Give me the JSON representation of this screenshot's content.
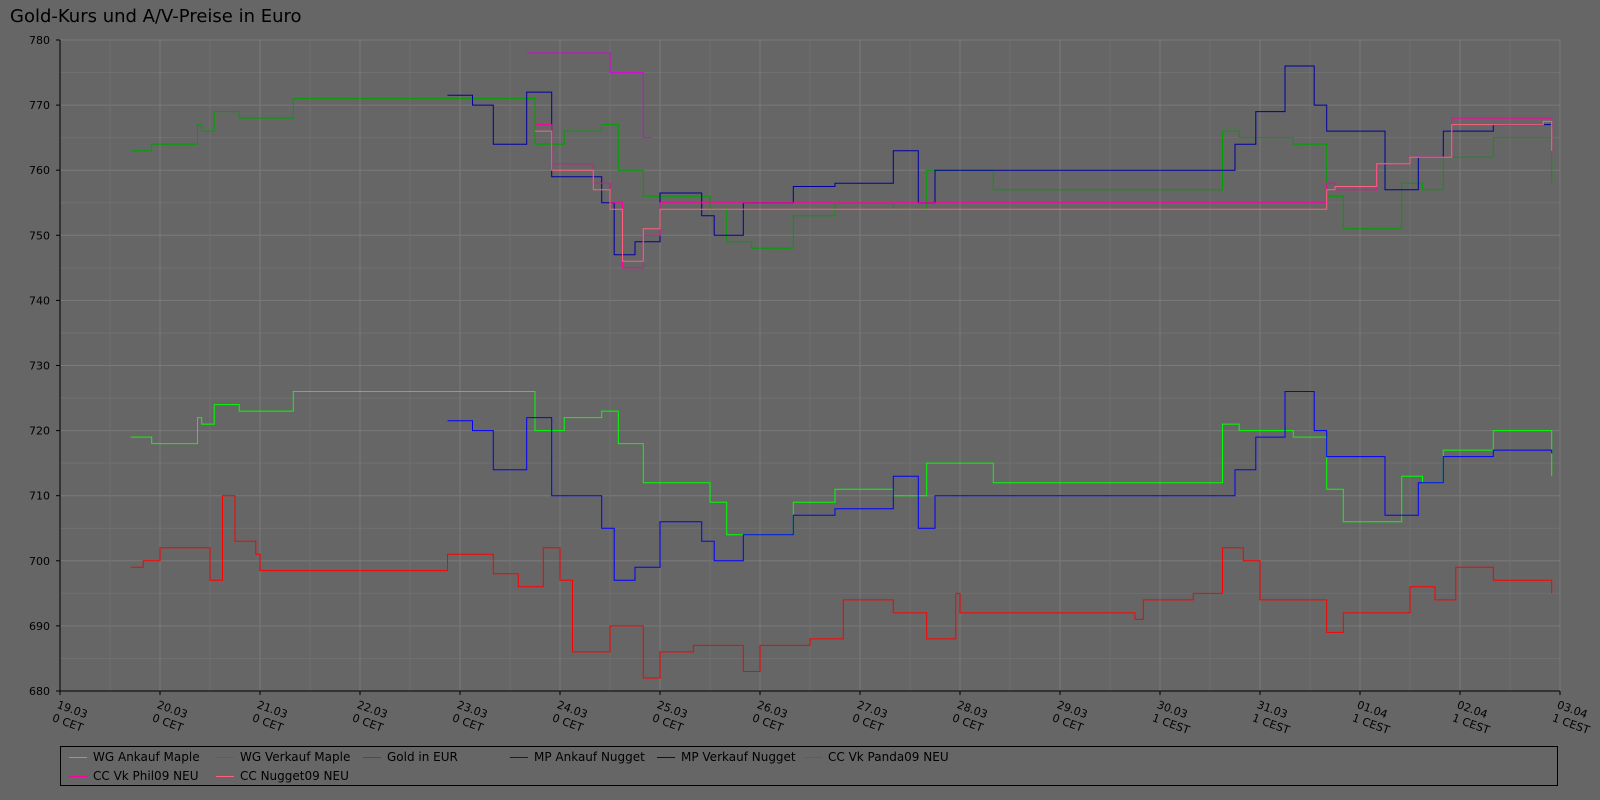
{
  "chart_data": {
    "type": "line",
    "title": "Gold-Kurs und A/V-Preise in Euro",
    "xlabel": "",
    "ylabel": "",
    "ylim": [
      680,
      780
    ],
    "yticks": [
      680,
      690,
      700,
      710,
      720,
      730,
      740,
      750,
      760,
      770,
      780
    ],
    "xlim": [
      "2009-03-19",
      "2009-04-03"
    ],
    "xticks": [
      {
        "x": "2009-03-19",
        "line1": "19.03",
        "line2": "0 CET"
      },
      {
        "x": "2009-03-20",
        "line1": "20.03",
        "line2": "0 CET"
      },
      {
        "x": "2009-03-21",
        "line1": "21.03",
        "line2": "0 CET"
      },
      {
        "x": "2009-03-22",
        "line1": "22.03",
        "line2": "0 CET"
      },
      {
        "x": "2009-03-23",
        "line1": "23.03",
        "line2": "0 CET"
      },
      {
        "x": "2009-03-24",
        "line1": "24.03",
        "line2": "0 CET"
      },
      {
        "x": "2009-03-25",
        "line1": "25.03",
        "line2": "0 CET"
      },
      {
        "x": "2009-03-26",
        "line1": "26.03",
        "line2": "0 CET"
      },
      {
        "x": "2009-03-27",
        "line1": "27.03",
        "line2": "0 CET"
      },
      {
        "x": "2009-03-28",
        "line1": "28.03",
        "line2": "0 CET"
      },
      {
        "x": "2009-03-29",
        "line1": "29.03",
        "line2": "0 CET"
      },
      {
        "x": "2009-03-30",
        "line1": "30.03",
        "line2": "1 CEST"
      },
      {
        "x": "2009-03-31",
        "line1": "31.03",
        "line2": "1 CEST"
      },
      {
        "x": "2009-04-01",
        "line1": "01.04",
        "line2": "1 CEST"
      },
      {
        "x": "2009-04-02",
        "line1": "02.04",
        "line2": "1 CEST"
      },
      {
        "x": "2009-04-03",
        "line1": "03.04",
        "line2": "1 CEST"
      }
    ],
    "grid": true,
    "legend_position": "bottom",
    "series": [
      {
        "name": "WG Ankauf Maple",
        "color": "#00ff00",
        "x": [
          "2009-03-19T17:00",
          "2009-03-19T22:00",
          "2009-03-20T09:00",
          "2009-03-20T10:00",
          "2009-03-20T13:00",
          "2009-03-20T19:00",
          "2009-03-21T08:00",
          "2009-03-23T08:00",
          "2009-03-23T12:00",
          "2009-03-23T18:00",
          "2009-03-24T01:00",
          "2009-03-24T10:00",
          "2009-03-24T14:00",
          "2009-03-24T20:00",
          "2009-03-25T12:00",
          "2009-03-25T16:00",
          "2009-03-25T22:00",
          "2009-03-26T08:00",
          "2009-03-26T18:00",
          "2009-03-27T08:00",
          "2009-03-27T16:00",
          "2009-03-28T08:00",
          "2009-03-29T20:00",
          "2009-03-30T08:00",
          "2009-03-30T15:00",
          "2009-03-30T19:00",
          "2009-03-31T08:00",
          "2009-03-31T16:00",
          "2009-03-31T20:00",
          "2009-04-01T10:00",
          "2009-04-01T15:00",
          "2009-04-01T20:00",
          "2009-04-02T08:00",
          "2009-04-02T22:00"
        ],
        "y": [
          719,
          718,
          722,
          721,
          724,
          723,
          726,
          726,
          726,
          720,
          722,
          723,
          718,
          712,
          709,
          704,
          704,
          709,
          711,
          710,
          715,
          712,
          712,
          712,
          721,
          720,
          719,
          711,
          706,
          713,
          712,
          717,
          720,
          713
        ]
      },
      {
        "name": "WG Verkauf Maple",
        "color": "#00a000",
        "x": [
          "2009-03-19T17:00",
          "2009-03-19T22:00",
          "2009-03-20T09:00",
          "2009-03-20T10:00",
          "2009-03-20T13:00",
          "2009-03-20T19:00",
          "2009-03-21T08:00",
          "2009-03-23T08:00",
          "2009-03-23T12:00",
          "2009-03-23T18:00",
          "2009-03-24T01:00",
          "2009-03-24T10:00",
          "2009-03-24T14:00",
          "2009-03-24T20:00",
          "2009-03-25T12:00",
          "2009-03-25T16:00",
          "2009-03-25T22:00",
          "2009-03-26T08:00",
          "2009-03-26T18:00",
          "2009-03-27T08:00",
          "2009-03-27T16:00",
          "2009-03-28T08:00",
          "2009-03-29T20:00",
          "2009-03-30T08:00",
          "2009-03-30T15:00",
          "2009-03-30T19:00",
          "2009-03-31T08:00",
          "2009-03-31T16:00",
          "2009-03-31T20:00",
          "2009-04-01T10:00",
          "2009-04-01T15:00",
          "2009-04-01T20:00",
          "2009-04-02T08:00",
          "2009-04-02T22:00"
        ],
        "y": [
          763,
          764,
          767,
          766,
          769,
          768,
          771,
          771,
          771,
          764,
          766,
          767,
          760,
          756,
          754,
          749,
          748,
          753,
          755,
          754,
          760,
          757,
          757,
          757,
          766,
          765,
          764,
          756,
          751,
          758,
          757,
          762,
          765,
          758
        ]
      },
      {
        "name": "Gold in EUR",
        "color": "#ff0000",
        "x": [
          "2009-03-19T17:00",
          "2009-03-19T20:00",
          "2009-03-20T00:00",
          "2009-03-20T12:00",
          "2009-03-20T15:00",
          "2009-03-20T18:00",
          "2009-03-20T23:00",
          "2009-03-21T00:00",
          "2009-03-22T20:00",
          "2009-03-22T21:00",
          "2009-03-23T00:00",
          "2009-03-23T08:00",
          "2009-03-23T14:00",
          "2009-03-23T20:00",
          "2009-03-24T00:00",
          "2009-03-24T03:00",
          "2009-03-24T12:00",
          "2009-03-24T20:00",
          "2009-03-25T00:00",
          "2009-03-25T08:00",
          "2009-03-25T15:00",
          "2009-03-25T20:00",
          "2009-03-26T00:00",
          "2009-03-26T12:00",
          "2009-03-26T20:00",
          "2009-03-27T08:00",
          "2009-03-27T16:00",
          "2009-03-27T23:00",
          "2009-03-28T00:00",
          "2009-03-29T18:00",
          "2009-03-29T20:00",
          "2009-03-30T08:00",
          "2009-03-30T15:00",
          "2009-03-30T20:00",
          "2009-03-31T00:00",
          "2009-03-31T08:00",
          "2009-03-31T16:00",
          "2009-03-31T20:00",
          "2009-04-01T12:00",
          "2009-04-01T18:00",
          "2009-04-01T23:00",
          "2009-04-02T08:00",
          "2009-04-02T22:00"
        ],
        "y": [
          699,
          700,
          702,
          697,
          710,
          703,
          701,
          698.5,
          698.5,
          701,
          701,
          698,
          696,
          702,
          697,
          686,
          690,
          682,
          686,
          687,
          687,
          683,
          687,
          688,
          694,
          692,
          688,
          695,
          692,
          691,
          694,
          695,
          702,
          700,
          694,
          694,
          689,
          692,
          696,
          694,
          699,
          697,
          695
        ]
      },
      {
        "name": "MP Ankauf Nugget",
        "color": "#0000ff",
        "x": [
          "2009-03-22T21:00",
          "2009-03-23T03:00",
          "2009-03-23T08:00",
          "2009-03-23T16:00",
          "2009-03-23T22:00",
          "2009-03-24T10:00",
          "2009-03-24T13:00",
          "2009-03-24T18:00",
          "2009-03-25T00:00",
          "2009-03-25T10:00",
          "2009-03-25T13:00",
          "2009-03-25T20:00",
          "2009-03-26T08:00",
          "2009-03-26T18:00",
          "2009-03-27T08:00",
          "2009-03-27T14:00",
          "2009-03-27T18:00",
          "2009-03-29T20:00",
          "2009-03-30T08:00",
          "2009-03-30T18:00",
          "2009-03-30T23:00",
          "2009-03-31T06:00",
          "2009-03-31T13:00",
          "2009-03-31T16:00",
          "2009-04-01T06:00",
          "2009-04-01T14:00",
          "2009-04-01T20:00",
          "2009-04-02T08:00",
          "2009-04-02T22:00"
        ],
        "y": [
          721.5,
          720,
          714,
          722,
          710,
          705,
          697,
          699,
          706,
          703,
          700,
          704,
          707,
          708,
          713,
          705,
          710,
          710,
          710,
          714,
          719,
          726,
          720,
          716,
          707,
          712,
          716,
          717,
          716.5
        ]
      },
      {
        "name": "MP Verkauf Nugget",
        "color": "#0000a0",
        "x": [
          "2009-03-22T21:00",
          "2009-03-23T03:00",
          "2009-03-23T08:00",
          "2009-03-23T16:00",
          "2009-03-23T22:00",
          "2009-03-24T10:00",
          "2009-03-24T13:00",
          "2009-03-24T18:00",
          "2009-03-25T00:00",
          "2009-03-25T10:00",
          "2009-03-25T13:00",
          "2009-03-25T20:00",
          "2009-03-26T08:00",
          "2009-03-26T18:00",
          "2009-03-27T08:00",
          "2009-03-27T14:00",
          "2009-03-27T18:00",
          "2009-03-29T20:00",
          "2009-03-30T08:00",
          "2009-03-30T18:00",
          "2009-03-30T23:00",
          "2009-03-31T06:00",
          "2009-03-31T13:00",
          "2009-03-31T16:00",
          "2009-04-01T06:00",
          "2009-04-01T14:00",
          "2009-04-01T20:00",
          "2009-04-02T08:00",
          "2009-04-02T22:00"
        ],
        "y": [
          771.5,
          770,
          764,
          772,
          759,
          755,
          747,
          749,
          756.5,
          753,
          750,
          755,
          757.5,
          758,
          763,
          755,
          760,
          760,
          760,
          764,
          769,
          776,
          770,
          766,
          757,
          762,
          766,
          767,
          766.5
        ]
      },
      {
        "name": "CC Vk Panda09 NEU",
        "color": "#e000e0",
        "x": [
          "2009-03-23T16:00",
          "2009-03-23T21:00",
          "2009-03-24T12:00",
          "2009-03-24T20:00",
          "2009-03-24T22:00"
        ],
        "y": [
          778,
          778,
          775,
          765,
          765
        ]
      },
      {
        "name": "CC Vk Phil09 NEU",
        "color": "#ff00a0",
        "x": [
          "2009-03-23T18:00",
          "2009-03-23T22:00",
          "2009-03-24T08:00",
          "2009-03-24T12:00",
          "2009-03-24T15:00",
          "2009-03-24T20:00",
          "2009-03-25T00:00",
          "2009-03-31T16:00",
          "2009-03-31T18:00",
          "2009-04-01T04:00",
          "2009-04-01T12:00",
          "2009-04-01T22:00",
          "2009-04-02T20:00",
          "2009-04-02T22:00"
        ],
        "y": [
          767,
          761,
          758,
          755,
          745,
          750,
          755,
          758,
          757,
          761,
          762,
          768,
          768,
          762
        ]
      },
      {
        "name": "CC Nugget09 NEU",
        "color": "#ff6080",
        "x": [
          "2009-03-23T18:00",
          "2009-03-23T22:00",
          "2009-03-24T08:00",
          "2009-03-24T12:00",
          "2009-03-24T15:00",
          "2009-03-24T20:00",
          "2009-03-25T00:00",
          "2009-03-31T16:00",
          "2009-03-31T18:00",
          "2009-04-01T04:00",
          "2009-04-01T12:00",
          "2009-04-01T22:00",
          "2009-04-02T20:00",
          "2009-04-02T22:00"
        ],
        "y": [
          766,
          760,
          757,
          754,
          746,
          751,
          754,
          757,
          757.5,
          761,
          762,
          767,
          767.5,
          763
        ]
      }
    ]
  }
}
